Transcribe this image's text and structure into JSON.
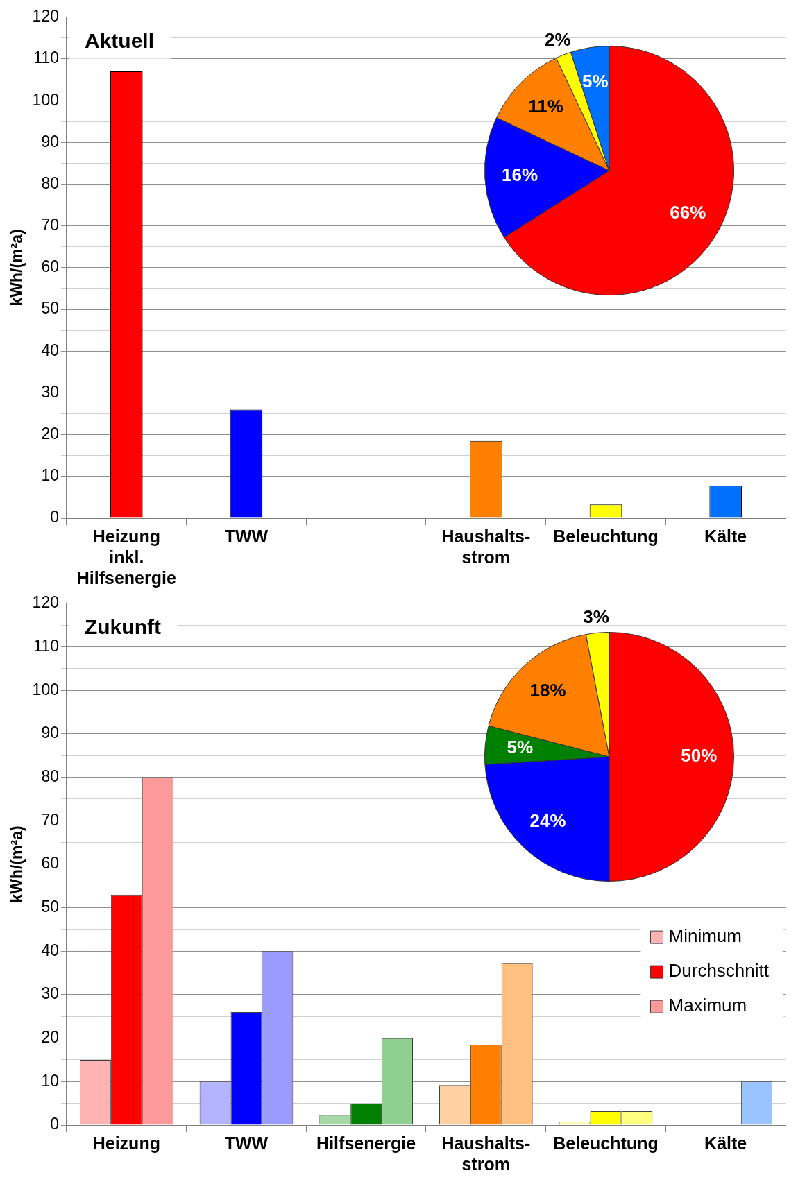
{
  "chart_data": [
    {
      "type": "bar",
      "title": "Aktuell",
      "ylabel": "kWh/(m²a)",
      "categories": [
        "Heizung inkl. Hilfsenergie",
        "TWW",
        null,
        "Haushalts-strom",
        "Beleuchtung",
        "Kälte"
      ],
      "values": [
        107,
        26,
        null,
        18.5,
        3.3,
        7.8
      ],
      "colors": [
        "#ff0000",
        "#0000ff",
        "#ffffff",
        "#ff8000",
        "#ffff00",
        "#0070ff"
      ],
      "ylim": [
        0,
        120
      ],
      "yticks": [
        0,
        {
          "value": 5,
          "label": null
        },
        10,
        {
          "value": 15,
          "label": null
        },
        20,
        {
          "value": 25,
          "label": null
        },
        30,
        {
          "value": 35,
          "label": null
        },
        40,
        {
          "value": 45,
          "label": null
        },
        50,
        {
          "value": 55,
          "label": null
        },
        60,
        {
          "value": 65,
          "label": null
        },
        70,
        {
          "value": 75,
          "label": null
        },
        80,
        {
          "value": 85,
          "label": null
        },
        90,
        {
          "value": 95,
          "label": null
        },
        100,
        {
          "value": 105,
          "label": null
        },
        110,
        {
          "value": 115,
          "label": null
        },
        120
      ],
      "grid": "y"
    },
    {
      "type": "pie",
      "categories": [
        null,
        null,
        null,
        null,
        null
      ],
      "values": [
        66,
        16,
        11,
        2,
        5
      ],
      "colors": [
        "#ff0000",
        "#0000ff",
        "#ff8000",
        "#ffff00",
        "#0070ff"
      ],
      "value_labels": [
        "66%",
        "16%",
        "11%",
        "2%",
        "5%"
      ]
    },
    {
      "type": "bar",
      "title": "Zukunft",
      "ylabel": "kWh/(m²a)",
      "categories": [
        "Heizung",
        "TWW",
        "Hilfsenergie",
        "Haushalts-strom",
        "Beleuchtung",
        "Kälte"
      ],
      "legend": "right",
      "series": [
        {
          "name": "Minimum",
          "colors": [
            "#ffb3b3",
            "#b3b3ff",
            "#a6d9a6",
            "#ffd0a0",
            "#ffffb0",
            "#b3d4ff"
          ],
          "values": [
            15,
            10,
            2.3,
            9.2,
            0.8,
            null
          ]
        },
        {
          "name": "Durchschnitt",
          "colors": [
            "#ff0000",
            "#0000ff",
            "#008000",
            "#ff8000",
            "#ffff00",
            "#0070ff"
          ],
          "values": [
            53,
            26,
            5,
            18.5,
            3.2,
            null
          ]
        },
        {
          "name": "Maximum",
          "colors": [
            "#ff9a9a",
            "#9a9aff",
            "#8fcf8f",
            "#ffc080",
            "#ffff80",
            "#99c4ff"
          ],
          "values": [
            80,
            40,
            20,
            37.2,
            3.2,
            10
          ]
        }
      ],
      "ylim": [
        0,
        120
      ],
      "yticks": [
        0,
        {
          "value": 5,
          "label": null
        },
        10,
        {
          "value": 15,
          "label": null
        },
        20,
        {
          "value": 25,
          "label": null
        },
        30,
        {
          "value": 35,
          "label": null
        },
        40,
        {
          "value": 45,
          "label": null
        },
        50,
        {
          "value": 55,
          "label": null
        },
        60,
        {
          "value": 65,
          "label": null
        },
        70,
        {
          "value": 75,
          "label": null
        },
        80,
        {
          "value": 85,
          "label": null
        },
        90,
        {
          "value": 95,
          "label": null
        },
        100,
        {
          "value": 105,
          "label": null
        },
        110,
        {
          "value": 115,
          "label": null
        },
        120
      ],
      "grid": "y"
    },
    {
      "type": "pie",
      "categories": [
        null,
        null,
        null,
        null,
        null
      ],
      "values": [
        50,
        24,
        5,
        18,
        3
      ],
      "colors": [
        "#ff0000",
        "#0000ff",
        "#008000",
        "#ff8000",
        "#ffff00"
      ],
      "value_labels": [
        "50%",
        "24%",
        "5%",
        "18%",
        "3%"
      ]
    }
  ]
}
